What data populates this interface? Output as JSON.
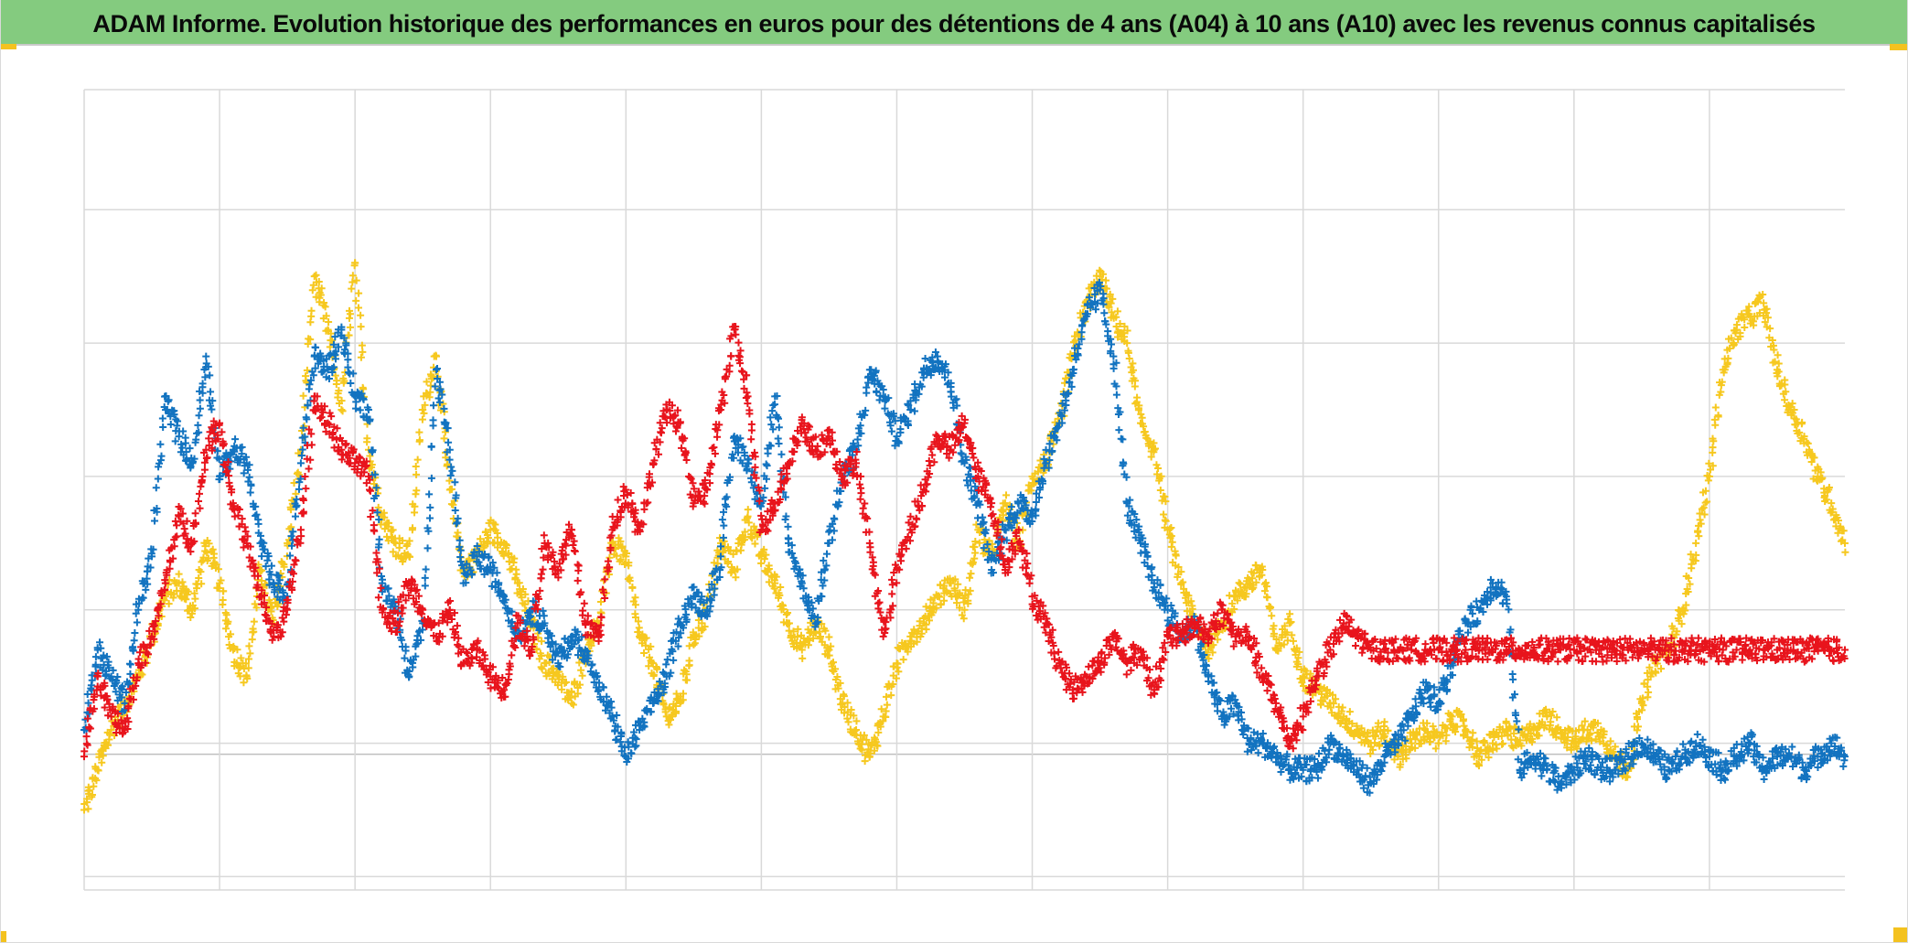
{
  "title": "ADAM Informe. Evolution historique des performances en euros pour des détentions de 4 ans (A04) à 10 ans (A10) avec les revenus connus capitalisés",
  "colors": {
    "banner": "#84cb7f",
    "corner": "#f4c21f",
    "grid": "#d9d9d9",
    "axis": "#bfbfbf",
    "series_red": "#e8141c",
    "series_blue": "#1273c0",
    "series_yellow": "#f6c81f"
  },
  "chart_data": {
    "type": "scatter",
    "title": "ADAM Informe. Evolution historique des performances en euros pour des détentions de 4 ans (A04) à 10 ans (A10) avec les revenus connus capitalisés",
    "xlabel": "",
    "ylabel": "",
    "grid": true,
    "legend": "none",
    "marker": "+",
    "xlim": [
      0,
      13
    ],
    "ylim": [
      -1.1,
      4.9
    ],
    "x_gridlines": 13,
    "y_gridlines": [
      -1,
      0,
      1,
      2,
      3,
      4
    ],
    "x": [
      0.0,
      0.1,
      0.2,
      0.3,
      0.4,
      0.5,
      0.6,
      0.7,
      0.8,
      0.9,
      1.0,
      1.1,
      1.2,
      1.3,
      1.4,
      1.5,
      1.6,
      1.7,
      1.8,
      1.9,
      2.0,
      2.1,
      2.2,
      2.3,
      2.4,
      2.5,
      2.6,
      2.7,
      2.8,
      2.9,
      3.0,
      3.1,
      3.2,
      3.3,
      3.4,
      3.5,
      3.6,
      3.7,
      3.8,
      3.9,
      4.0,
      4.1,
      4.2,
      4.3,
      4.4,
      4.5,
      4.6,
      4.7,
      4.8,
      4.9,
      5.0,
      5.1,
      5.2,
      5.3,
      5.4,
      5.5,
      5.6,
      5.7,
      5.8,
      5.9,
      6.0,
      6.1,
      6.2,
      6.3,
      6.4,
      6.5,
      6.6,
      6.7,
      6.8,
      6.9,
      7.0,
      7.1,
      7.2,
      7.3,
      7.4,
      7.5,
      7.6,
      7.7,
      7.8,
      7.9,
      8.0,
      8.1,
      8.2,
      8.3,
      8.4,
      8.5,
      8.6,
      8.7,
      8.8,
      8.9,
      9.0,
      9.1,
      9.2,
      9.3,
      9.4,
      9.5,
      9.6,
      9.7,
      9.8,
      9.9,
      10.0,
      10.1,
      10.2,
      10.3,
      10.4,
      10.5,
      10.6,
      10.7,
      10.8,
      10.9,
      11.0,
      11.1,
      11.2,
      11.3,
      11.4,
      11.5,
      11.6,
      11.7,
      11.8,
      11.9,
      12.0,
      12.1,
      12.2,
      12.3,
      12.4,
      12.5,
      12.6,
      12.7,
      12.8,
      12.9,
      13.0
    ],
    "series": [
      {
        "color": "red",
        "values": [
          -0.1,
          0.5,
          0.2,
          0.1,
          0.6,
          0.8,
          1.2,
          1.7,
          1.5,
          2.2,
          2.4,
          1.8,
          1.5,
          1.1,
          0.8,
          1.0,
          1.6,
          2.6,
          2.4,
          2.2,
          2.1,
          2.0,
          1.0,
          0.9,
          1.2,
          1.0,
          0.8,
          1.0,
          0.6,
          0.7,
          0.5,
          0.4,
          0.9,
          0.7,
          1.5,
          1.3,
          1.6,
          0.9,
          0.8,
          1.6,
          1.9,
          1.6,
          2.1,
          2.5,
          2.4,
          1.8,
          1.9,
          2.5,
          3.1,
          2.6,
          1.6,
          1.8,
          2.1,
          2.4,
          2.2,
          2.3,
          2.0,
          2.1,
          1.5,
          0.8,
          1.3,
          1.6,
          1.9,
          2.3,
          2.2,
          2.4,
          2.0,
          1.8,
          1.3,
          1.6,
          1.1,
          0.9,
          0.6,
          0.4,
          0.5,
          0.6,
          0.8,
          0.6,
          0.7,
          0.4,
          0.8,
          0.8,
          0.9,
          0.8,
          1.0,
          0.8,
          0.8,
          0.5,
          0.3,
          0.0,
          0.2,
          0.5,
          0.7,
          0.9,
          0.8,
          0.7,
          0.7,
          0.7,
          0.7,
          0.7,
          0.7,
          0.7,
          0.7,
          0.7,
          0.7,
          0.7,
          0.7,
          0.7,
          0.7,
          0.7,
          0.7,
          0.7,
          0.7,
          0.7,
          0.7,
          0.7,
          0.7,
          0.7,
          0.7,
          0.7,
          0.7,
          0.7,
          0.7,
          0.7,
          0.7,
          0.7,
          0.7,
          0.7,
          0.7,
          0.7,
          0.7
        ]
      },
      {
        "color": "blue",
        "values": [
          0.1,
          0.7,
          0.5,
          0.3,
          1.0,
          1.4,
          2.6,
          2.3,
          2.1,
          2.9,
          2.0,
          2.2,
          2.1,
          1.5,
          1.2,
          1.1,
          2.1,
          2.9,
          2.8,
          3.1,
          2.6,
          2.5,
          1.2,
          1.0,
          0.5,
          0.9,
          2.8,
          2.2,
          1.2,
          1.4,
          1.3,
          1.1,
          0.8,
          1.0,
          0.9,
          0.6,
          0.8,
          0.7,
          0.4,
          0.2,
          -0.1,
          0.1,
          0.3,
          0.5,
          0.9,
          1.1,
          1.0,
          1.4,
          2.3,
          2.1,
          1.8,
          2.6,
          1.5,
          1.2,
          0.9,
          1.5,
          2.0,
          2.2,
          2.8,
          2.6,
          2.3,
          2.5,
          2.8,
          2.9,
          2.7,
          2.1,
          1.8,
          1.3,
          1.6,
          1.8,
          1.7,
          2.1,
          2.4,
          2.8,
          3.2,
          3.4,
          2.9,
          1.8,
          1.5,
          1.2,
          1.0,
          0.8,
          0.9,
          0.5,
          0.2,
          0.3,
          0.0,
          0.0,
          -0.1,
          -0.2,
          -0.2,
          -0.2,
          0.0,
          -0.1,
          -0.2,
          -0.3,
          -0.1,
          0.0,
          0.2,
          0.4,
          0.3,
          0.6,
          0.9,
          1.0,
          1.2,
          1.1,
          -0.2,
          -0.1,
          -0.2,
          -0.3,
          -0.2,
          -0.1,
          -0.2,
          -0.2,
          -0.1,
          0.0,
          -0.1,
          -0.2,
          -0.1,
          0.0,
          -0.1,
          -0.2,
          -0.1,
          0.0,
          -0.2,
          -0.1,
          -0.1,
          -0.2,
          -0.1,
          0.0,
          -0.1
        ]
      },
      {
        "color": "yellow",
        "values": [
          -0.5,
          -0.2,
          0.1,
          0.3,
          0.5,
          0.8,
          1.1,
          1.2,
          1.0,
          1.5,
          1.2,
          0.7,
          0.5,
          1.3,
          0.9,
          1.5,
          2.2,
          3.5,
          3.1,
          2.5,
          3.6,
          2.2,
          1.7,
          1.5,
          1.4,
          2.5,
          2.9,
          1.9,
          1.3,
          1.4,
          1.6,
          1.5,
          1.2,
          0.9,
          0.6,
          0.5,
          0.3,
          0.7,
          0.9,
          1.5,
          1.4,
          0.8,
          0.6,
          0.2,
          0.3,
          0.8,
          1.0,
          1.5,
          1.3,
          1.7,
          1.4,
          1.2,
          0.9,
          0.7,
          0.9,
          0.7,
          0.3,
          0.1,
          -0.1,
          0.2,
          0.6,
          0.8,
          0.9,
          1.1,
          1.2,
          1.0,
          1.6,
          1.4,
          1.8,
          1.5,
          2.0,
          2.1,
          2.4,
          2.9,
          3.3,
          3.5,
          3.2,
          3.0,
          2.4,
          2.2,
          1.6,
          1.2,
          0.9,
          0.7,
          0.9,
          1.1,
          1.2,
          1.3,
          0.7,
          0.9,
          0.5,
          0.4,
          0.3,
          0.2,
          0.1,
          0.0,
          0.1,
          -0.1,
          0.0,
          0.1,
          0.0,
          0.2,
          0.1,
          -0.1,
          0.0,
          0.1,
          0.0,
          0.1,
          0.2,
          0.1,
          0.0,
          0.1,
          0.1,
          -0.1,
          -0.2,
          0.3,
          0.6,
          0.7,
          1.0,
          1.5,
          2.0,
          2.8,
          3.1,
          3.2,
          3.3,
          2.8,
          2.5,
          2.3,
          2.0,
          1.8,
          1.5
        ]
      }
    ]
  }
}
